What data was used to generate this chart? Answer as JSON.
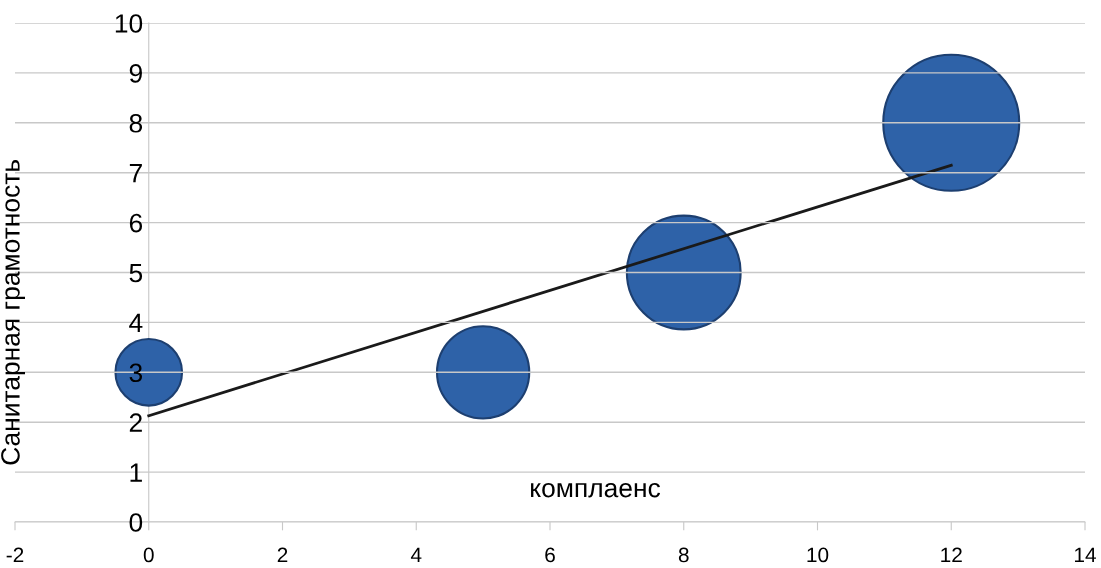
{
  "chart_data": {
    "type": "bubble",
    "xlabel": "комплаенс",
    "ylabel": "Санитарная грамотность",
    "series": [
      {
        "color": "#2e62a8",
        "x": [
          0,
          5,
          8,
          12
        ],
        "values": [
          3,
          3,
          5,
          8
        ],
        "sizes": [
          0.24,
          0.46,
          0.7,
          1
        ]
      },
      {
        "type": "line",
        "color": "#1a1a1a",
        "x": [
          0,
          12
        ],
        "values": [
          2.13,
          7.15
        ]
      }
    ],
    "xlim": [
      -2,
      14
    ],
    "xticks": [
      -2,
      0,
      2,
      4,
      6,
      8,
      10,
      12,
      14
    ],
    "ylim": [
      0,
      10
    ],
    "yticks": [
      0,
      1,
      2,
      3,
      4,
      5,
      6,
      7,
      8,
      9,
      10
    ],
    "grid": "y"
  }
}
